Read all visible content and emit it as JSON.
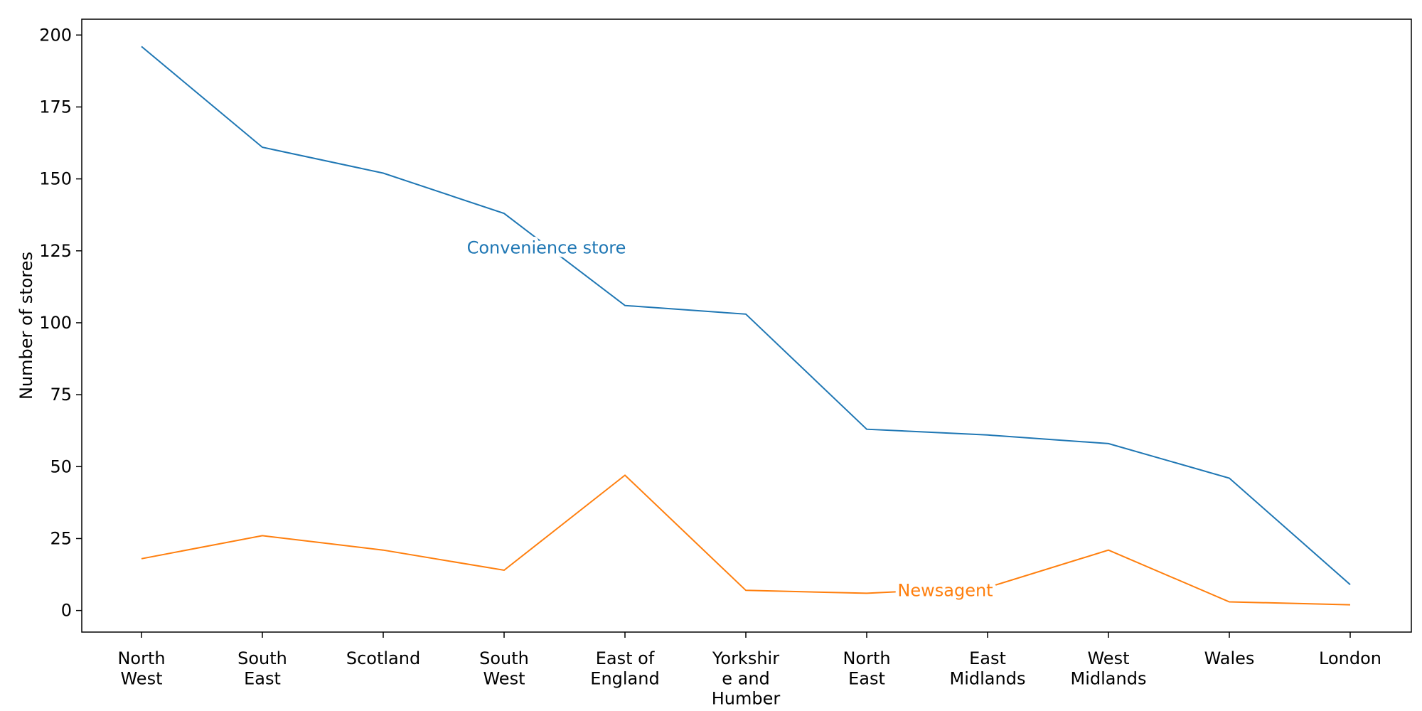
{
  "chart_data": {
    "type": "line",
    "title": "",
    "xlabel": "",
    "ylabel": "Number of stores",
    "categories": [
      [
        "North",
        "West"
      ],
      [
        "South",
        "East"
      ],
      [
        "Scotland"
      ],
      [
        "South",
        "West"
      ],
      [
        "East of",
        "England"
      ],
      [
        "Yorkshir",
        "e and",
        "Humber"
      ],
      [
        "North",
        "East"
      ],
      [
        "East",
        "Midlands"
      ],
      [
        "West",
        "Midlands"
      ],
      [
        "Wales"
      ],
      [
        "London"
      ]
    ],
    "ylim": [
      -7.5,
      205.5
    ],
    "yticks": [
      0,
      25,
      50,
      75,
      100,
      125,
      150,
      175,
      200
    ],
    "grid": false,
    "legend": "none",
    "series": [
      {
        "name": "Convenience store",
        "color": "#1f77b4",
        "values": [
          196,
          161,
          152,
          138,
          106,
          103,
          63,
          61,
          58,
          46,
          9
        ],
        "label_position": {
          "x": 3.35,
          "y": 126
        }
      },
      {
        "name": "Newsagent",
        "color": "#ff7f0e",
        "values": [
          18,
          26,
          21,
          14,
          47,
          7,
          6,
          8,
          21,
          3,
          2
        ],
        "label_position": {
          "x": 6.65,
          "y": 7
        }
      }
    ]
  }
}
